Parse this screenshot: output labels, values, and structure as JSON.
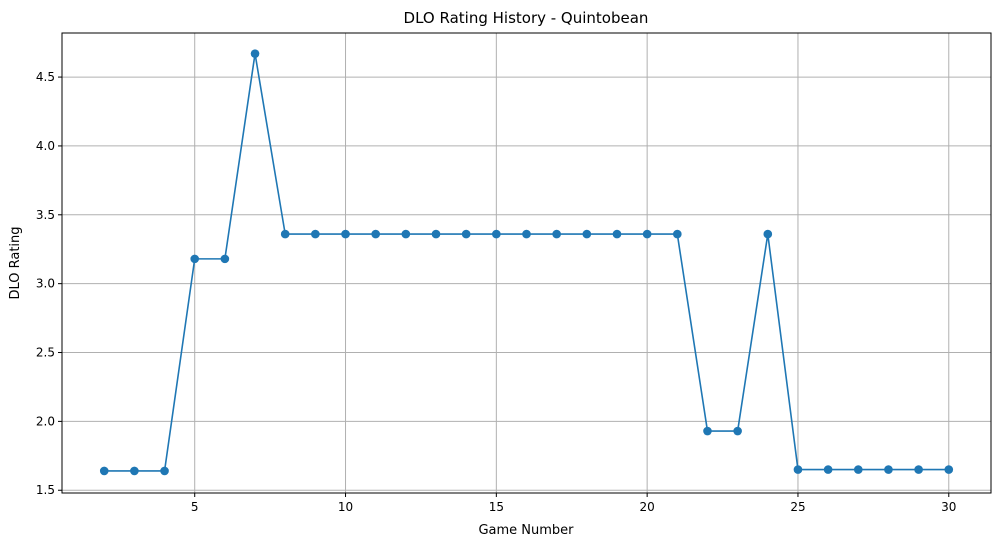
{
  "chart_data": {
    "type": "line",
    "title": "DLO Rating History - Quintobean",
    "xlabel": "Game Number",
    "ylabel": "DLO Rating",
    "xlim": [
      0.6,
      31.4
    ],
    "ylim": [
      1.48,
      4.82
    ],
    "xticks": [
      5,
      10,
      15,
      20,
      25,
      30
    ],
    "yticks": [
      1.5,
      2.0,
      2.5,
      3.0,
      3.5,
      4.0,
      4.5
    ],
    "ytick_labels": [
      "1.5",
      "2.0",
      "2.5",
      "3.0",
      "3.5",
      "4.0",
      "4.5"
    ],
    "grid": true,
    "color": "#1f77b4",
    "marker": "circle",
    "series": [
      {
        "x": [
          2,
          3,
          4,
          5,
          6,
          7,
          8,
          9,
          10,
          11,
          12,
          13,
          14,
          15,
          16,
          17,
          18,
          19,
          20,
          21,
          22,
          23,
          24,
          25,
          26,
          27,
          28,
          29,
          30
        ],
        "values": [
          1.64,
          1.64,
          1.64,
          3.18,
          3.18,
          4.67,
          3.36,
          3.36,
          3.36,
          3.36,
          3.36,
          3.36,
          3.36,
          3.36,
          3.36,
          3.36,
          3.36,
          3.36,
          3.36,
          3.36,
          1.93,
          1.93,
          3.36,
          1.65,
          1.65,
          1.65,
          1.65,
          1.65,
          1.65
        ]
      }
    ]
  }
}
